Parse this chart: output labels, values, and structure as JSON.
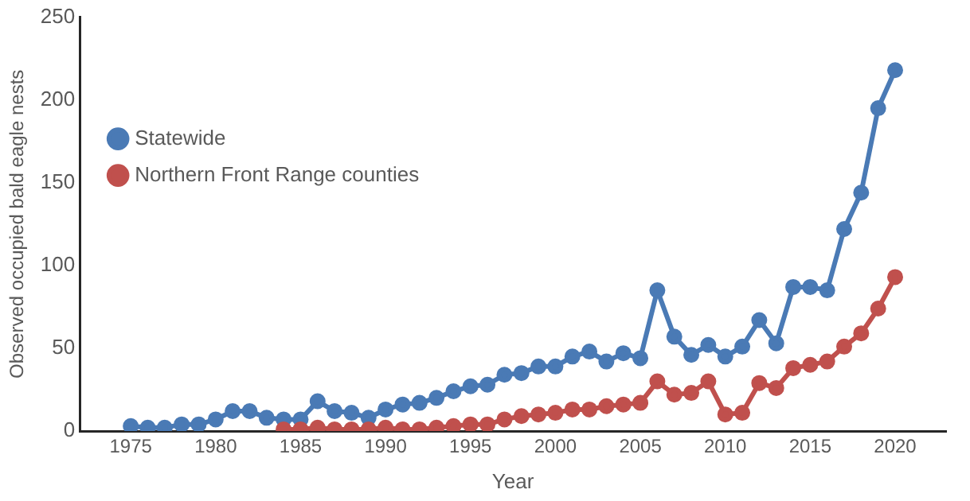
{
  "chart_data": {
    "type": "line",
    "xlabel": "Year",
    "ylabel": "Observed occupied bald eagle nests",
    "x": [
      1975,
      1976,
      1977,
      1978,
      1979,
      1980,
      1981,
      1982,
      1983,
      1984,
      1985,
      1986,
      1987,
      1988,
      1989,
      1990,
      1991,
      1992,
      1993,
      1994,
      1995,
      1996,
      1997,
      1998,
      1999,
      2000,
      2001,
      2002,
      2003,
      2004,
      2005,
      2006,
      2007,
      2008,
      2009,
      2010,
      2011,
      2012,
      2013,
      2014,
      2015,
      2016,
      2017,
      2018,
      2019,
      2020
    ],
    "series": [
      {
        "name": "Statewide",
        "color": "#4a7ab5",
        "values": [
          3,
          2,
          2,
          4,
          4,
          7,
          12,
          12,
          8,
          7,
          7,
          18,
          12,
          11,
          8,
          13,
          16,
          17,
          20,
          24,
          27,
          28,
          34,
          35,
          39,
          39,
          45,
          48,
          42,
          47,
          44,
          85,
          57,
          46,
          52,
          45,
          51,
          67,
          53,
          87,
          87,
          85,
          122,
          144,
          195,
          218
        ]
      },
      {
        "name": "Northern Front Range counties",
        "color": "#c0504d",
        "values": [
          null,
          null,
          null,
          null,
          null,
          null,
          null,
          null,
          null,
          1,
          1,
          2,
          1,
          1,
          1,
          2,
          1,
          1,
          2,
          3,
          4,
          4,
          7,
          9,
          10,
          11,
          13,
          13,
          15,
          16,
          17,
          30,
          22,
          23,
          30,
          10,
          11,
          29,
          26,
          38,
          40,
          42,
          51,
          59,
          74,
          93
        ]
      }
    ],
    "xlim": [
      1972,
      2023
    ],
    "xticks": [
      1975,
      1980,
      1985,
      1990,
      1995,
      2000,
      2005,
      2010,
      2015,
      2020
    ],
    "ylim": [
      0,
      250
    ],
    "yticks": [
      0,
      50,
      100,
      150,
      200,
      250
    ],
    "grid": false,
    "legend": "top left",
    "marker": "circle",
    "line_style": "solid"
  }
}
